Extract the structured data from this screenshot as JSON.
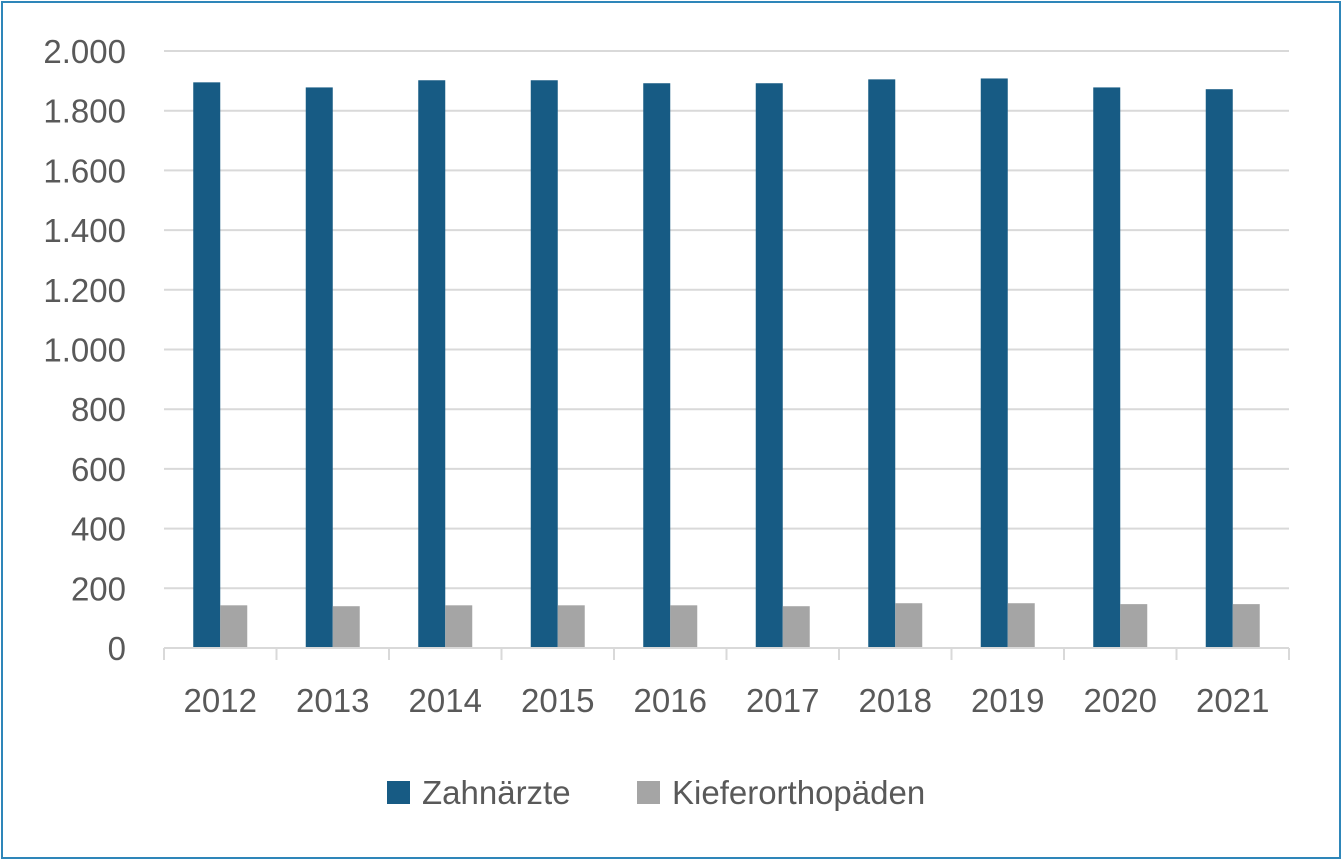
{
  "chart_data": {
    "type": "bar",
    "title": "",
    "xlabel": "",
    "ylabel": "",
    "categories": [
      "2012",
      "2013",
      "2014",
      "2015",
      "2016",
      "2017",
      "2018",
      "2019",
      "2020",
      "2021"
    ],
    "series": [
      {
        "name": "Zahnärzte",
        "color": "#175b84",
        "values": [
          1895,
          1878,
          1902,
          1902,
          1892,
          1892,
          1905,
          1908,
          1878,
          1872
        ]
      },
      {
        "name": "Kieferorthopäden",
        "color": "#a5a5a5",
        "values": [
          143,
          140,
          143,
          143,
          143,
          140,
          150,
          150,
          147,
          147
        ]
      }
    ],
    "ylim": [
      0,
      2000
    ],
    "yticks": [
      0,
      200,
      400,
      600,
      800,
      1000,
      1200,
      1400,
      1600,
      1800,
      2000
    ],
    "ytick_labels": [
      "0",
      "200",
      "400",
      "600",
      "800",
      "1.000",
      "1.200",
      "1.400",
      "1.600",
      "1.800",
      "2.000"
    ],
    "grid": true,
    "legend_position": "bottom"
  }
}
